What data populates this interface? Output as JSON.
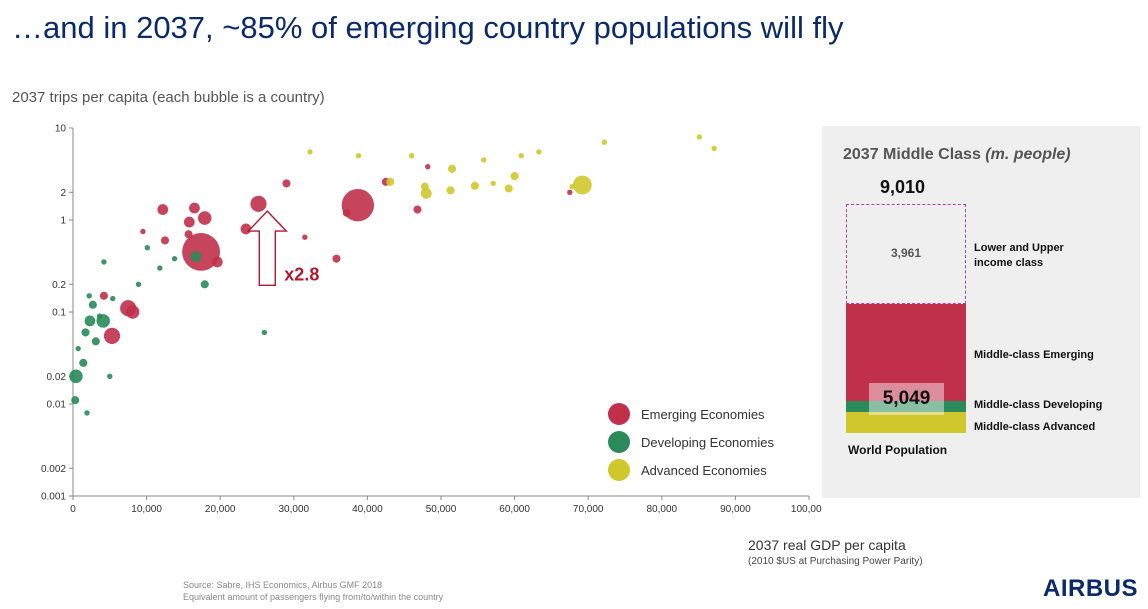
{
  "header": {
    "title": "…and in 2037, ~85% of emerging country populations will fly"
  },
  "chart_data": [
    {
      "type": "scatter",
      "title": "",
      "ylabel": "2037 trips per capita (each bubble is a country)",
      "xlabel": "2037 real GDP per capita",
      "xlabel_sub": "(2010 $US at Purchasing Power Parity)",
      "x_scale": "linear",
      "y_scale": "log",
      "xlim": [
        0,
        100000
      ],
      "ylim": [
        0.001,
        10
      ],
      "x_ticks": [
        0,
        10000,
        20000,
        30000,
        40000,
        50000,
        60000,
        70000,
        80000,
        90000,
        100000
      ],
      "x_tick_labels": [
        "0",
        "10,000",
        "20,000",
        "30,000",
        "40,000",
        "50,000",
        "60,000",
        "70,000",
        "80,000",
        "90,000",
        "100,000"
      ],
      "y_ticks": [
        0.001,
        0.002,
        0.01,
        0.02,
        0.1,
        0.2,
        1,
        2,
        10
      ],
      "y_tick_labels": [
        "0.001",
        "0.002",
        "0.01",
        "0.02",
        "0.1",
        "0.2",
        "1",
        "2",
        "10"
      ],
      "grid": false,
      "legend_position": "bottom-right",
      "series": [
        {
          "name": "Emerging Economies",
          "color": "#c0304a",
          "points": [
            {
              "x": 17400,
              "y": 0.45,
              "size": 14
            },
            {
              "x": 38700,
              "y": 1.45,
              "size": 12
            },
            {
              "x": 25200,
              "y": 1.5,
              "size": 6
            },
            {
              "x": 5300,
              "y": 0.055,
              "size": 6
            },
            {
              "x": 7500,
              "y": 0.11,
              "size": 6
            },
            {
              "x": 8100,
              "y": 0.1,
              "size": 5
            },
            {
              "x": 17900,
              "y": 1.05,
              "size": 5
            },
            {
              "x": 12200,
              "y": 1.3,
              "size": 4
            },
            {
              "x": 15800,
              "y": 0.95,
              "size": 4
            },
            {
              "x": 16500,
              "y": 1.35,
              "size": 4
            },
            {
              "x": 19600,
              "y": 0.35,
              "size": 4
            },
            {
              "x": 23500,
              "y": 0.8,
              "size": 4
            },
            {
              "x": 29000,
              "y": 2.5,
              "size": 3
            },
            {
              "x": 35800,
              "y": 0.38,
              "size": 3
            },
            {
              "x": 42500,
              "y": 2.6,
              "size": 3
            },
            {
              "x": 15700,
              "y": 0.7,
              "size": 3
            },
            {
              "x": 12500,
              "y": 0.6,
              "size": 3
            },
            {
              "x": 4200,
              "y": 0.15,
              "size": 3
            },
            {
              "x": 27800,
              "y": 0.85,
              "size": 3
            },
            {
              "x": 37200,
              "y": 1.2,
              "size": 3
            },
            {
              "x": 46800,
              "y": 1.3,
              "size": 3
            },
            {
              "x": 48200,
              "y": 3.8,
              "size": 2
            },
            {
              "x": 67500,
              "y": 2.0,
              "size": 2
            },
            {
              "x": 31500,
              "y": 0.65,
              "size": 2
            },
            {
              "x": 9500,
              "y": 0.75,
              "size": 2
            }
          ]
        },
        {
          "name": "Developing Economies",
          "color": "#2a8a5a",
          "points": [
            {
              "x": 400,
              "y": 0.02,
              "size": 5
            },
            {
              "x": 4100,
              "y": 0.08,
              "size": 5
            },
            {
              "x": 2300,
              "y": 0.08,
              "size": 4
            },
            {
              "x": 16700,
              "y": 0.4,
              "size": 4
            },
            {
              "x": 3100,
              "y": 0.048,
              "size": 3
            },
            {
              "x": 17900,
              "y": 0.2,
              "size": 3
            },
            {
              "x": 1400,
              "y": 0.028,
              "size": 3
            },
            {
              "x": 1700,
              "y": 0.06,
              "size": 3
            },
            {
              "x": 2700,
              "y": 0.12,
              "size": 3
            },
            {
              "x": 300,
              "y": 0.011,
              "size": 3
            },
            {
              "x": 1900,
              "y": 0.008,
              "size": 2
            },
            {
              "x": 5000,
              "y": 0.02,
              "size": 2
            },
            {
              "x": 3600,
              "y": 0.09,
              "size": 2
            },
            {
              "x": 2200,
              "y": 0.15,
              "size": 2
            },
            {
              "x": 8900,
              "y": 0.2,
              "size": 2
            },
            {
              "x": 11800,
              "y": 0.3,
              "size": 2
            },
            {
              "x": 10100,
              "y": 0.5,
              "size": 2
            },
            {
              "x": 4200,
              "y": 0.35,
              "size": 2
            },
            {
              "x": 13800,
              "y": 0.38,
              "size": 2
            },
            {
              "x": 5400,
              "y": 0.14,
              "size": 2
            },
            {
              "x": 26000,
              "y": 0.06,
              "size": 2
            },
            {
              "x": 700,
              "y": 0.04,
              "size": 2
            }
          ]
        },
        {
          "name": "Advanced Economies",
          "color": "#cfc72c",
          "points": [
            {
              "x": 69200,
              "y": 2.4,
              "size": 7
            },
            {
              "x": 48000,
              "y": 1.95,
              "size": 4
            },
            {
              "x": 51300,
              "y": 2.1,
              "size": 3
            },
            {
              "x": 59200,
              "y": 2.2,
              "size": 3
            },
            {
              "x": 47800,
              "y": 2.3,
              "size": 3
            },
            {
              "x": 43100,
              "y": 2.6,
              "size": 3
            },
            {
              "x": 54600,
              "y": 2.35,
              "size": 3
            },
            {
              "x": 51500,
              "y": 3.6,
              "size": 3
            },
            {
              "x": 60000,
              "y": 3.0,
              "size": 3
            },
            {
              "x": 57100,
              "y": 2.5,
              "size": 2
            },
            {
              "x": 67800,
              "y": 2.3,
              "size": 2
            },
            {
              "x": 46000,
              "y": 5.0,
              "size": 2
            },
            {
              "x": 72200,
              "y": 7.0,
              "size": 2
            },
            {
              "x": 85100,
              "y": 8.0,
              "size": 2
            },
            {
              "x": 87100,
              "y": 6.0,
              "size": 2
            },
            {
              "x": 60900,
              "y": 5.0,
              "size": 2
            },
            {
              "x": 55800,
              "y": 4.5,
              "size": 2
            },
            {
              "x": 63300,
              "y": 5.5,
              "size": 2
            },
            {
              "x": 32200,
              "y": 5.5,
              "size": 2
            },
            {
              "x": 38800,
              "y": 5.0,
              "size": 2
            }
          ]
        }
      ],
      "annotation": {
        "label": "x2.8",
        "color": "#b01830"
      }
    },
    {
      "type": "bar",
      "title": "2037 Middle Class",
      "unit": "(m. people)",
      "category": "World Population",
      "total": "9,010",
      "stack": [
        {
          "name": "Lower and Upper income class",
          "value": "3,961",
          "color": "#ffffff",
          "border": "#b0409a"
        },
        {
          "name": "Middle-class Emerging",
          "color": "#c0304a"
        },
        {
          "name": "Middle-class Developing",
          "color": "#2a8a5a"
        },
        {
          "name": "Middle-class Advanced",
          "color": "#cfc72c"
        }
      ],
      "middle_total": "5,049"
    }
  ],
  "footer": {
    "source": "Source: Sabre, IHS Economics, Airbus GMF 2018",
    "note": "Equivalent amount of passengers flying from/to/within the country",
    "logo": "AIRBUS"
  }
}
